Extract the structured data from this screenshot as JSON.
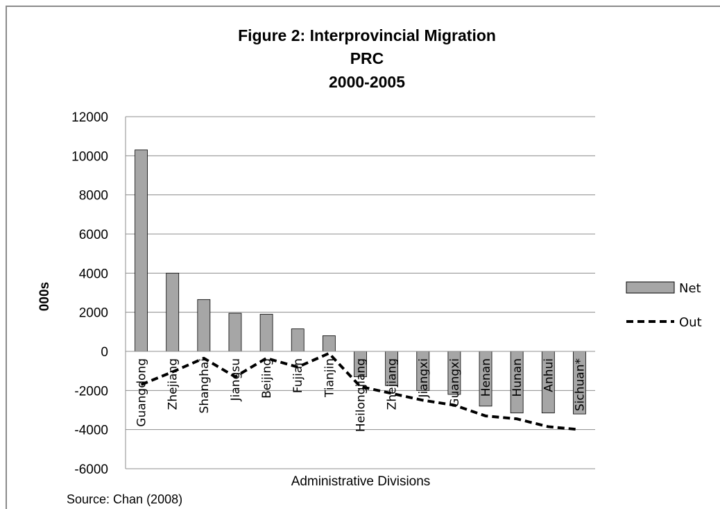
{
  "chart_data": {
    "type": "bar",
    "title": [
      "Figure 2: Interprovincial Migration",
      "PRC",
      "2000-2005"
    ],
    "xlabel": "Administrative Divisions",
    "ylabel": "000s",
    "ylim": [
      -6000,
      12000
    ],
    "yticks": [
      12000,
      10000,
      8000,
      6000,
      4000,
      2000,
      0,
      -2000,
      -4000,
      -6000
    ],
    "grid": true,
    "legend_position": "right",
    "categories": [
      "Guangdong",
      "Zhejiang",
      "Shanghai",
      "Jiangsu",
      "Beijing",
      "Fujian",
      "Tianjin",
      "Heilongjiang",
      "Zhejiang",
      "Jiangxi",
      "Guangxi",
      "Henan",
      "Hunan",
      "Anhui",
      "Sichuan*"
    ],
    "series": [
      {
        "name": "Net",
        "type": "bar",
        "color": "#a6a6a6",
        "values": [
          10300,
          4000,
          2650,
          1950,
          1900,
          1150,
          800,
          -1300,
          -1750,
          -2000,
          -2200,
          -2800,
          -3150,
          -3150,
          -3200
        ]
      },
      {
        "name": "Out",
        "type": "line",
        "style": "dashed",
        "color": "#000000",
        "values": [
          -1700,
          -1050,
          -350,
          -1300,
          -350,
          -800,
          -100,
          -1800,
          -2150,
          -2500,
          -2750,
          -3300,
          -3450,
          -3850,
          -4000
        ]
      }
    ]
  },
  "source": "Source:  Chan (2008)"
}
